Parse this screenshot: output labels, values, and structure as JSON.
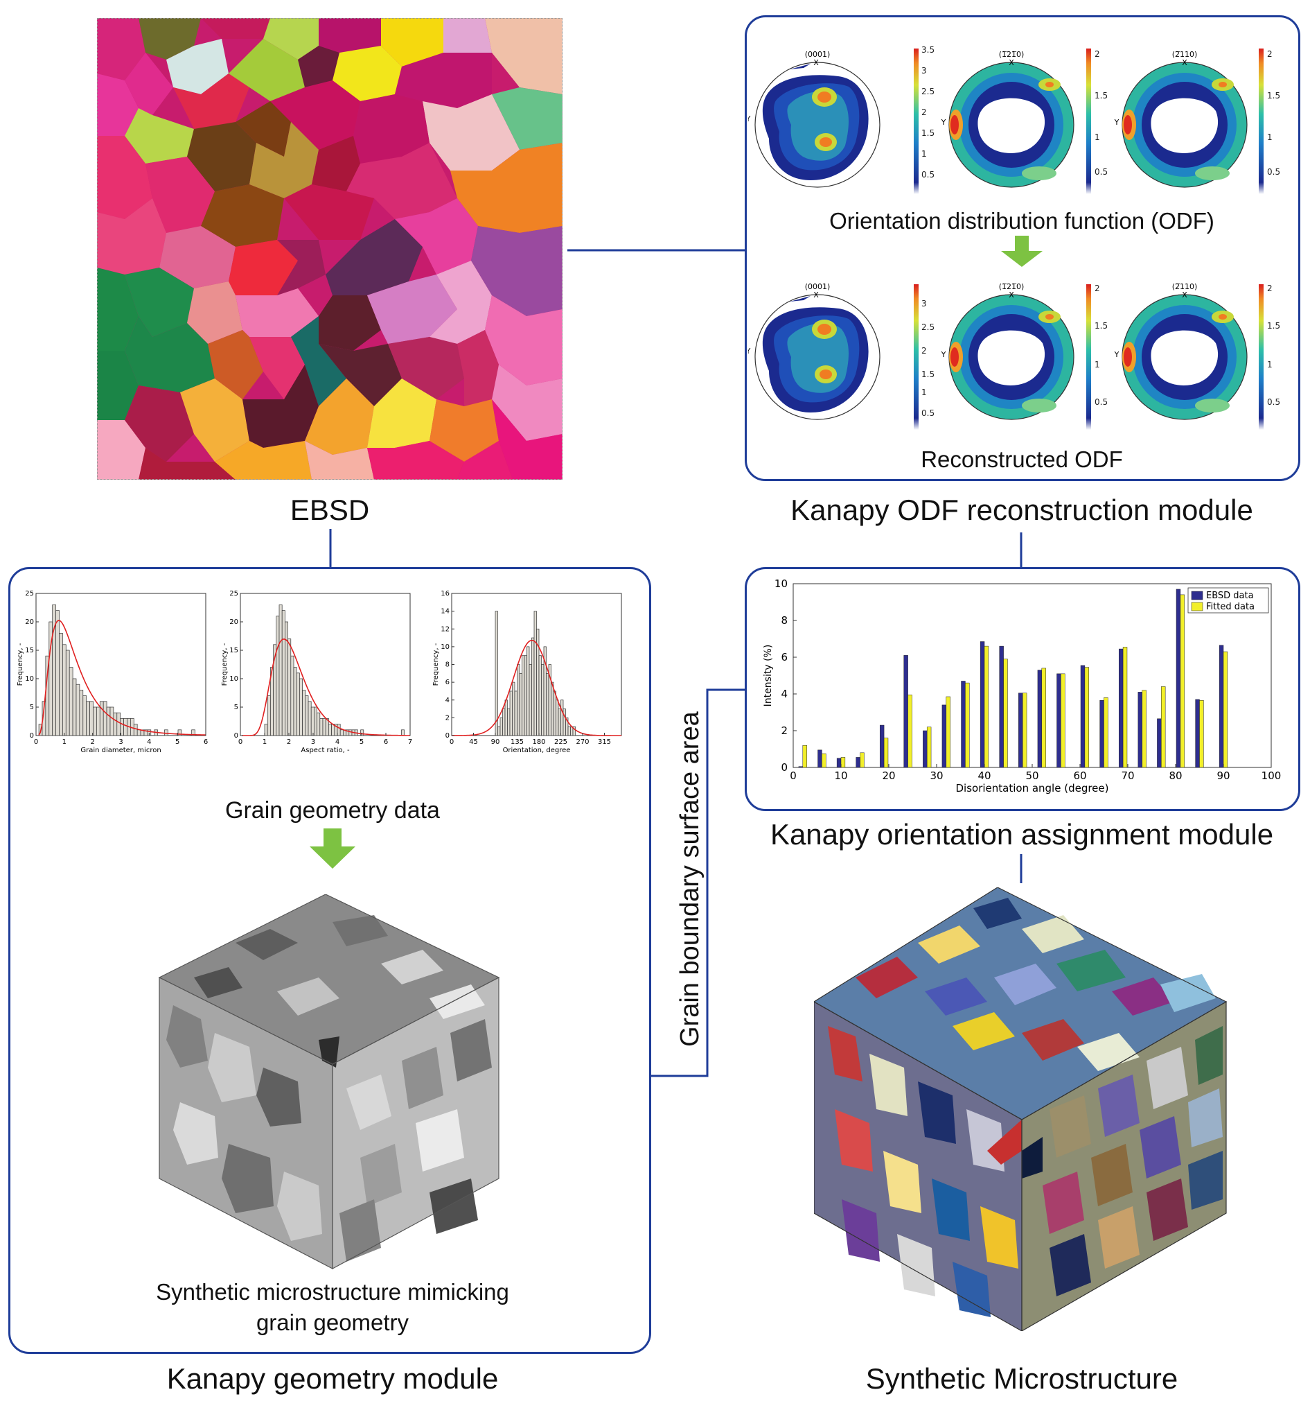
{
  "colors": {
    "frame": "#1f3d99",
    "arrow": "#7dc242",
    "fit_curve": "#e02020",
    "ebsd_series": "#2e2e8f",
    "fitted_series": "#f2ef2a"
  },
  "ebsd": {
    "caption": "EBSD"
  },
  "odf_module": {
    "title": "Kanapy ODF reconstruction module",
    "odf_caption": "Orientation distribution function (ODF)",
    "reconstructed_caption": "Reconstructed ODF",
    "pole_labels": [
      "(0001)",
      "(1̅21̅0)",
      "(2̅110)"
    ],
    "axis_x": "X",
    "axis_y": "Y",
    "colorbars_top": [
      [
        "3.5",
        "3",
        "2.5",
        "2",
        "1.5",
        "1",
        "0.5"
      ],
      [
        "2",
        "1.5",
        "1",
        "0.5"
      ],
      [
        "2",
        "1.5",
        "1",
        "0.5"
      ]
    ],
    "colorbars_bottom": [
      [
        "3",
        "2.5",
        "2",
        "1.5",
        "1",
        "0.5"
      ],
      [
        "2",
        "1.5",
        "1",
        "0.5"
      ],
      [
        "2",
        "1.5",
        "1",
        "0.5"
      ]
    ]
  },
  "orientation_module": {
    "title": "Kanapy orientation assignment module",
    "link_label": "Grain boundary surface area"
  },
  "geometry_module": {
    "title": "Kanapy geometry module",
    "data_caption": "Grain geometry data",
    "synthetic_caption_1": "Synthetic microstructure mimicking",
    "synthetic_caption_2": "grain geometry"
  },
  "synthetic": {
    "caption": "Synthetic Microstructure"
  },
  "chart_data": [
    {
      "type": "bar",
      "xlabel": "Grain diameter, micron",
      "ylabel": "Frequency, -",
      "xlim": [
        0,
        6
      ],
      "ylim": [
        0,
        25
      ],
      "xticks": [
        "0",
        "1",
        "2",
        "3",
        "4",
        "5",
        "6"
      ],
      "yticks": [
        "0",
        "5",
        "10",
        "15",
        "20",
        "25"
      ],
      "bin_width": 0.12,
      "bin_start": 0.1,
      "values": [
        2,
        6,
        14,
        20,
        23,
        22,
        18,
        16,
        15,
        12,
        10,
        9,
        8,
        7,
        6,
        6,
        5,
        5,
        6,
        6,
        5,
        5,
        4,
        4,
        3,
        3,
        3,
        3,
        2,
        1,
        1,
        1,
        1,
        0,
        1,
        0,
        0,
        1,
        0,
        0,
        0,
        1,
        0,
        0,
        0,
        1
      ],
      "fit_curve": true
    },
    {
      "type": "bar",
      "xlabel": "Aspect ratio, -",
      "ylabel": "Frequency, -",
      "xlim": [
        0,
        7
      ],
      "ylim": [
        0,
        25
      ],
      "xticks": [
        "0",
        "1",
        "2",
        "3",
        "4",
        "5",
        "6",
        "7"
      ],
      "yticks": [
        "0",
        "5",
        "10",
        "15",
        "20",
        "25"
      ],
      "bin_width": 0.12,
      "bin_start": 1.0,
      "values": [
        2,
        7,
        12,
        16,
        21,
        23,
        22,
        20,
        17,
        14,
        12,
        11,
        10,
        8,
        7,
        6,
        5,
        5,
        4,
        3,
        3,
        3,
        2,
        2,
        2,
        2,
        1,
        1,
        1,
        1,
        1,
        1,
        0,
        1,
        0,
        0,
        0,
        0,
        0,
        0,
        0,
        0,
        0,
        0,
        0,
        0,
        0,
        1
      ],
      "fit_curve": true
    },
    {
      "type": "bar",
      "xlabel": "Orientation, degree",
      "ylabel": "Frequency, -",
      "xlim": [
        0,
        350
      ],
      "ylim": [
        0,
        16
      ],
      "xticks": [
        "0",
        "45",
        "90",
        "135",
        "180",
        "225",
        "270",
        "315"
      ],
      "yticks": [
        "0",
        "2",
        "4",
        "6",
        "8",
        "10",
        "12",
        "14",
        "16"
      ],
      "bin_width": 5,
      "bin_start": 90,
      "values": [
        14,
        1,
        2,
        3,
        4,
        3,
        5,
        6,
        5,
        8,
        7,
        9,
        9,
        10,
        8,
        11,
        14,
        12,
        9,
        8,
        10,
        7,
        8,
        6,
        5,
        4,
        3,
        4,
        3,
        2,
        1,
        1,
        1
      ],
      "fit_curve": true
    },
    {
      "type": "bar",
      "xlabel": "Disorientation angle (degree)",
      "ylabel": "Intensity (%)",
      "xlim": [
        0,
        100
      ],
      "ylim": [
        0,
        10
      ],
      "xticks": [
        "0",
        "10",
        "20",
        "30",
        "40",
        "50",
        "60",
        "70",
        "80",
        "90",
        "100"
      ],
      "yticks": [
        "0",
        "2",
        "4",
        "6",
        "8",
        "10"
      ],
      "categories": [
        2,
        6,
        10,
        14,
        19,
        24,
        28,
        32,
        36,
        40,
        44,
        48,
        52,
        56,
        61,
        65,
        69,
        73,
        77,
        81,
        85,
        90
      ],
      "series": [
        {
          "name": "EBSD data",
          "values": [
            0.05,
            0.95,
            0.5,
            0.55,
            2.3,
            6.1,
            2.0,
            3.4,
            4.7,
            6.85,
            6.6,
            4.05,
            5.3,
            5.1,
            5.55,
            3.65,
            6.45,
            4.1,
            2.65,
            9.7,
            3.7,
            6.65
          ]
        },
        {
          "name": "Fitted data",
          "values": [
            1.2,
            0.75,
            0.55,
            0.8,
            1.6,
            3.95,
            2.2,
            3.85,
            4.6,
            6.6,
            5.9,
            4.05,
            5.4,
            5.1,
            5.45,
            3.8,
            6.55,
            4.2,
            4.4,
            9.4,
            3.65,
            6.3
          ]
        }
      ]
    }
  ]
}
